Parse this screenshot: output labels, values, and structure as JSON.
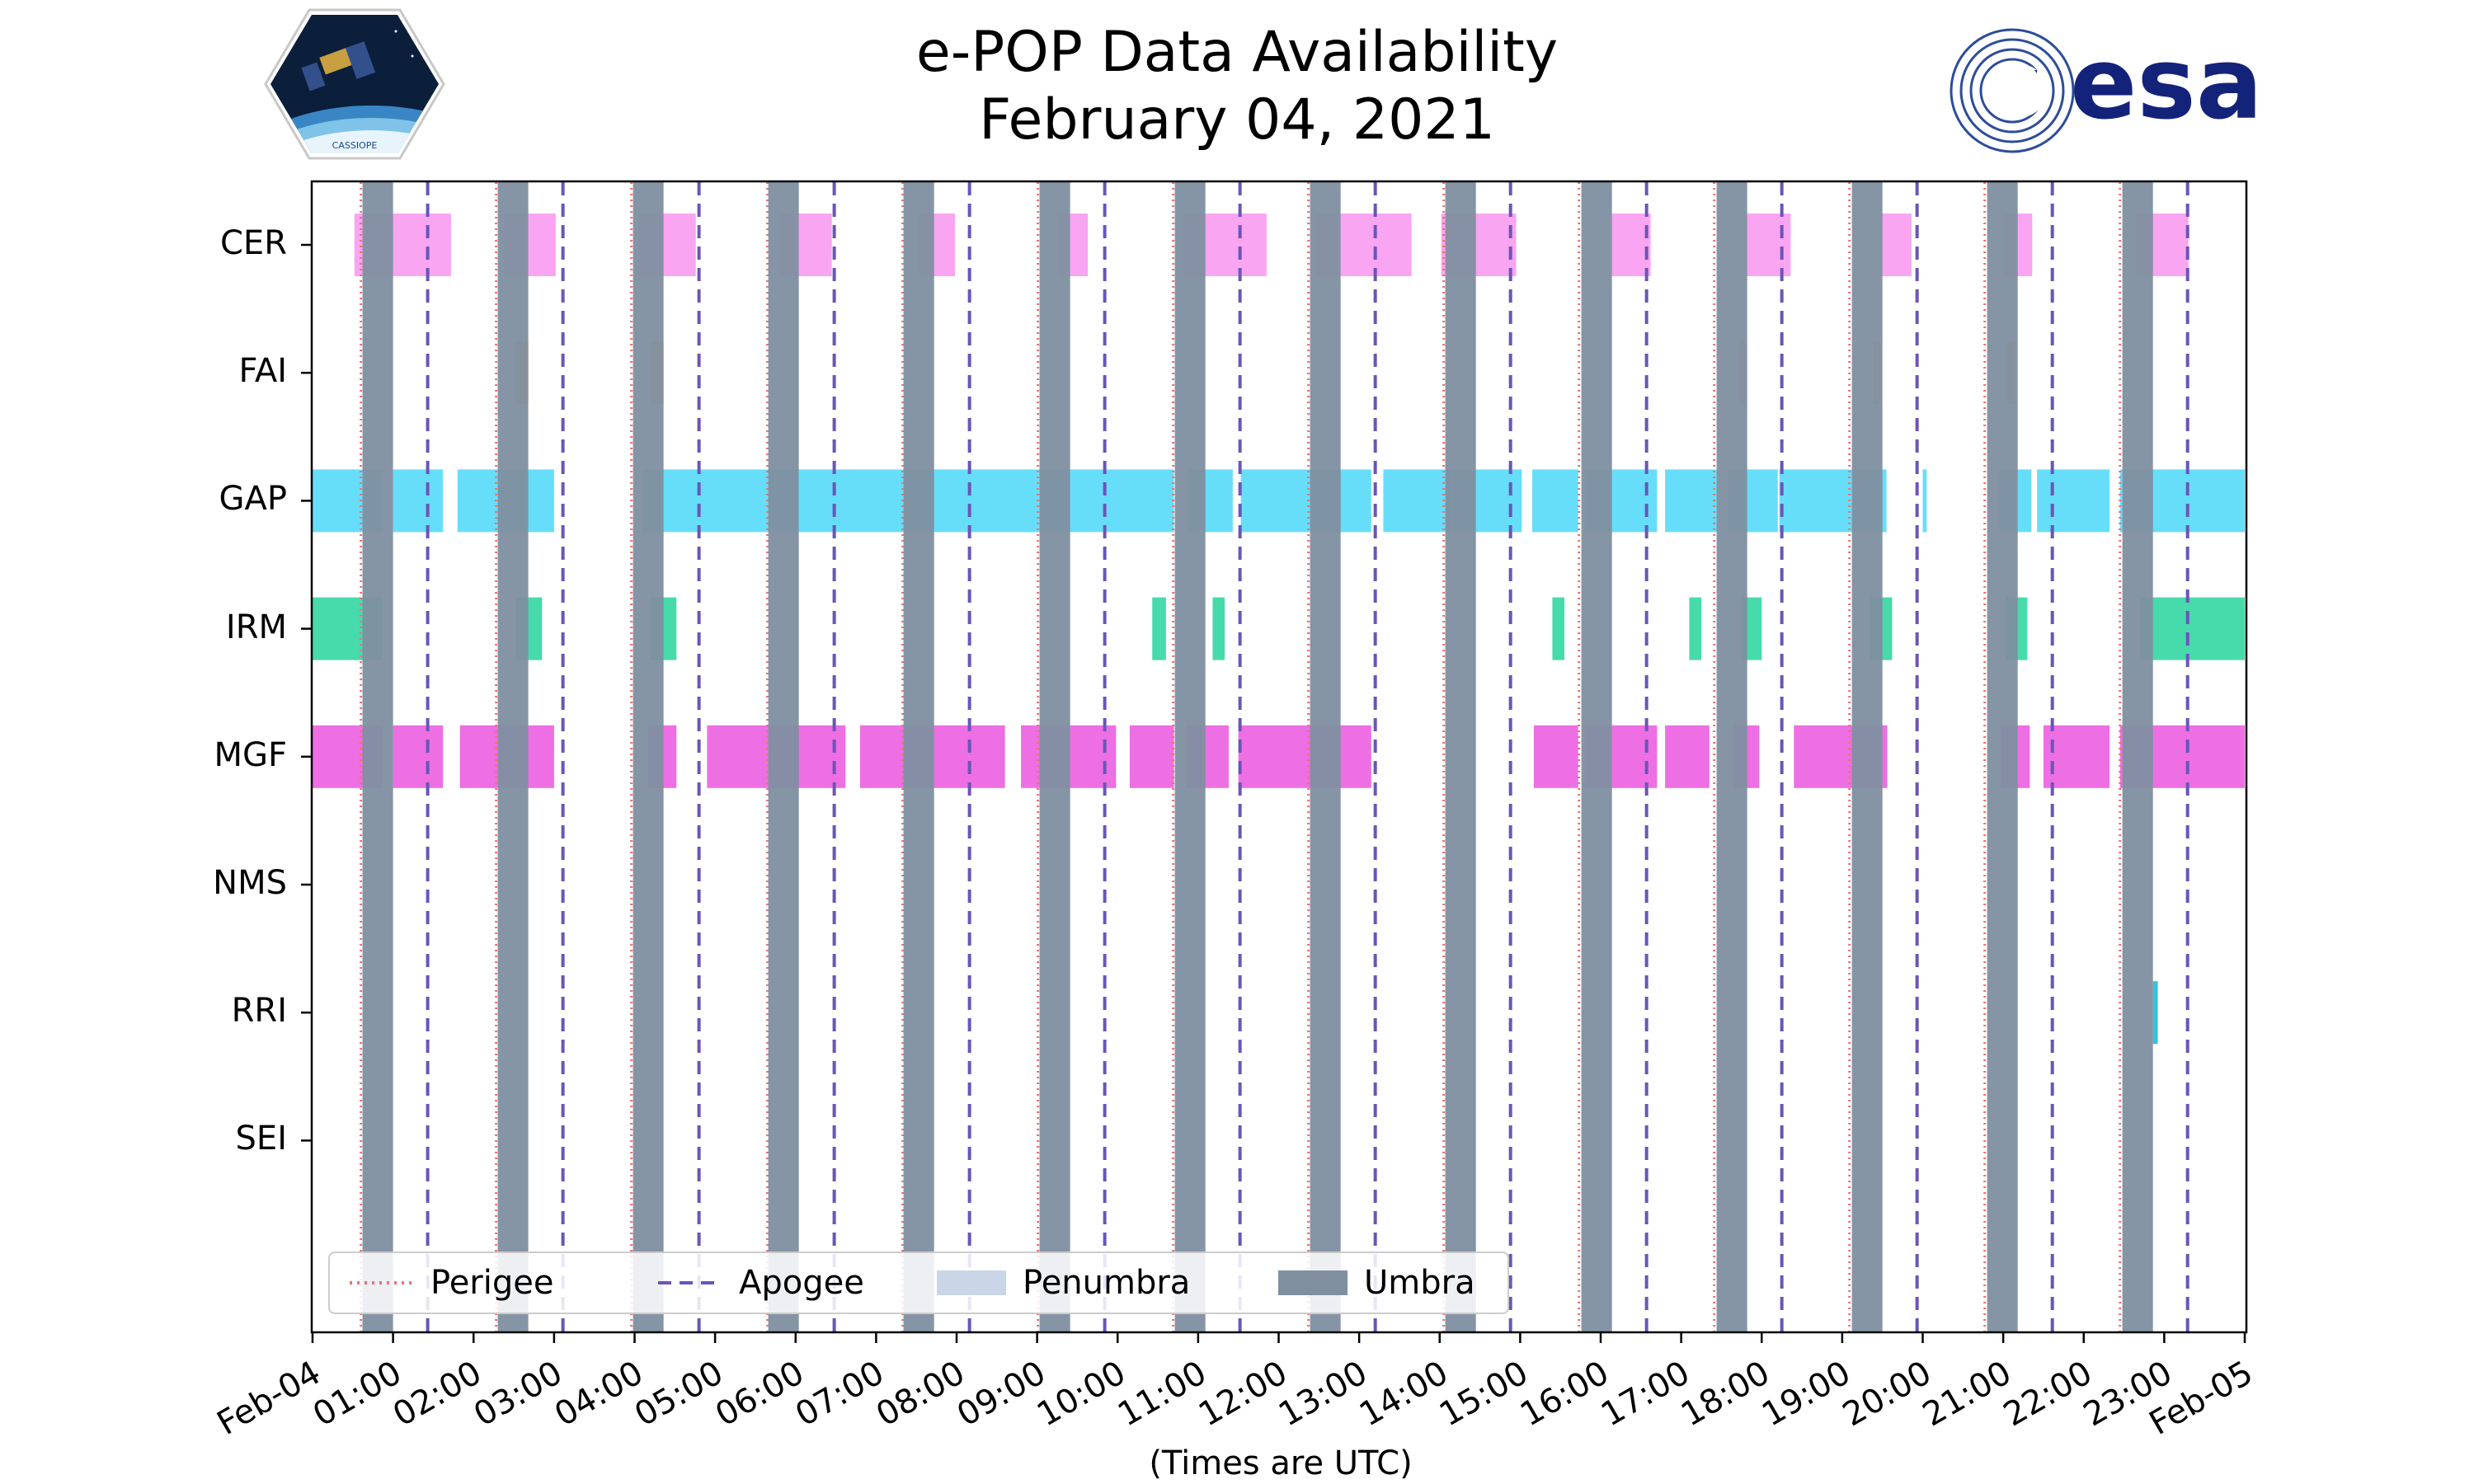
{
  "title_line1": "e-POP Data Availability",
  "title_line2": "February 04, 2021",
  "logos": {
    "left": "CASSIOPE",
    "right": "esa"
  },
  "chart_data": {
    "type": "timeline",
    "title": "e-POP Data Availability February 04, 2021",
    "xlabel": "(Times are UTC)",
    "xlim_hours": [
      0,
      24
    ],
    "x_tick_labels": [
      "Feb-04",
      "01:00",
      "02:00",
      "03:00",
      "04:00",
      "05:00",
      "06:00",
      "07:00",
      "08:00",
      "09:00",
      "10:00",
      "11:00",
      "12:00",
      "13:00",
      "14:00",
      "15:00",
      "16:00",
      "17:00",
      "18:00",
      "19:00",
      "20:00",
      "21:00",
      "22:00",
      "23:00",
      "Feb-05"
    ],
    "instruments": [
      "CER",
      "FAI",
      "GAP",
      "IRM",
      "MGF",
      "NMS",
      "RRI",
      "SEI"
    ],
    "colors": {
      "CER": "#f9a0f0",
      "FAI": "#e9bf5f",
      "GAP": "#5fdcf9",
      "IRM": "#3dd8a6",
      "MGF": "#ec67e2",
      "NMS": "#999999",
      "RRI": "#2bbed8",
      "SEI": "#999999",
      "perigee": "#f07070",
      "apogee": "#6a55b8",
      "penumbra": "#c9d6e8",
      "umbra": "#7f8fa0"
    },
    "umbra_intervals": [
      [
        0.62,
        1.0
      ],
      [
        2.3,
        2.68
      ],
      [
        3.98,
        4.36
      ],
      [
        5.66,
        6.04
      ],
      [
        7.34,
        7.72
      ],
      [
        9.03,
        9.41
      ],
      [
        10.71,
        11.09
      ],
      [
        12.39,
        12.77
      ],
      [
        14.07,
        14.45
      ],
      [
        15.76,
        16.14
      ],
      [
        17.44,
        17.82
      ],
      [
        19.12,
        19.5
      ],
      [
        20.8,
        21.18
      ],
      [
        22.48,
        22.86
      ]
    ],
    "perigee_times": [
      0.6,
      2.28,
      3.96,
      5.65,
      7.33,
      9.01,
      10.69,
      12.37,
      14.05,
      15.73,
      17.41,
      19.09,
      20.77,
      22.45
    ],
    "apogee_times": [
      1.43,
      3.11,
      4.8,
      6.48,
      8.16,
      9.84,
      11.52,
      13.2,
      14.88,
      16.57,
      18.25,
      19.93,
      21.61,
      23.29
    ],
    "intervals": {
      "CER": [
        [
          0.52,
          1.72
        ],
        [
          2.37,
          3.02
        ],
        [
          4.05,
          4.76
        ],
        [
          5.8,
          6.45
        ],
        [
          7.52,
          7.98
        ],
        [
          9.26,
          9.63
        ],
        [
          10.82,
          11.85
        ],
        [
          12.45,
          13.65
        ],
        [
          14.02,
          14.95
        ],
        [
          16.12,
          16.62
        ],
        [
          17.8,
          18.36
        ],
        [
          19.47,
          19.86
        ],
        [
          21.0,
          21.36
        ],
        [
          22.65,
          23.3
        ]
      ],
      "FAI": [
        [
          2.52,
          2.68
        ],
        [
          4.2,
          4.36
        ],
        [
          17.72,
          17.8
        ],
        [
          19.38,
          19.48
        ],
        [
          21.05,
          21.15
        ]
      ],
      "GAP": [
        [
          0.0,
          0.87
        ],
        [
          1.0,
          1.62
        ],
        [
          1.8,
          3.0
        ],
        [
          4.1,
          10.7
        ],
        [
          10.87,
          11.43
        ],
        [
          11.53,
          13.15
        ],
        [
          13.3,
          14.15
        ],
        [
          14.17,
          15.02
        ],
        [
          15.15,
          15.72
        ],
        [
          15.8,
          16.7
        ],
        [
          16.8,
          17.45
        ],
        [
          17.58,
          18.2
        ],
        [
          18.22,
          19.55
        ],
        [
          20.0,
          20.05
        ],
        [
          20.95,
          21.35
        ],
        [
          21.42,
          22.32
        ],
        [
          22.45,
          24.0
        ]
      ],
      "IRM": [
        [
          0.0,
          0.87
        ],
        [
          2.52,
          2.85
        ],
        [
          4.2,
          4.52
        ],
        [
          10.43,
          10.6
        ],
        [
          11.18,
          11.33
        ],
        [
          15.4,
          15.55
        ],
        [
          17.1,
          17.25
        ],
        [
          17.75,
          18.0
        ],
        [
          19.35,
          19.62
        ],
        [
          21.03,
          21.3
        ],
        [
          22.7,
          24.0
        ]
      ],
      "MGF": [
        [
          0.0,
          0.87
        ],
        [
          1.0,
          1.62
        ],
        [
          1.83,
          3.0
        ],
        [
          4.17,
          4.52
        ],
        [
          4.9,
          6.62
        ],
        [
          6.8,
          8.6
        ],
        [
          8.8,
          9.98
        ],
        [
          10.15,
          10.7
        ],
        [
          10.85,
          11.38
        ],
        [
          11.5,
          13.15
        ],
        [
          15.17,
          15.72
        ],
        [
          15.8,
          16.7
        ],
        [
          16.8,
          17.35
        ],
        [
          17.65,
          17.97
        ],
        [
          18.4,
          19.56
        ],
        [
          20.97,
          21.33
        ],
        [
          21.5,
          22.32
        ],
        [
          22.45,
          24.0
        ]
      ],
      "NMS": [],
      "RRI": [
        [
          22.86,
          22.92
        ]
      ],
      "SEI": []
    },
    "legend": {
      "position": "lower-left",
      "entries": [
        "Perigee",
        "Apogee",
        "Penumbra",
        "Umbra"
      ]
    }
  }
}
